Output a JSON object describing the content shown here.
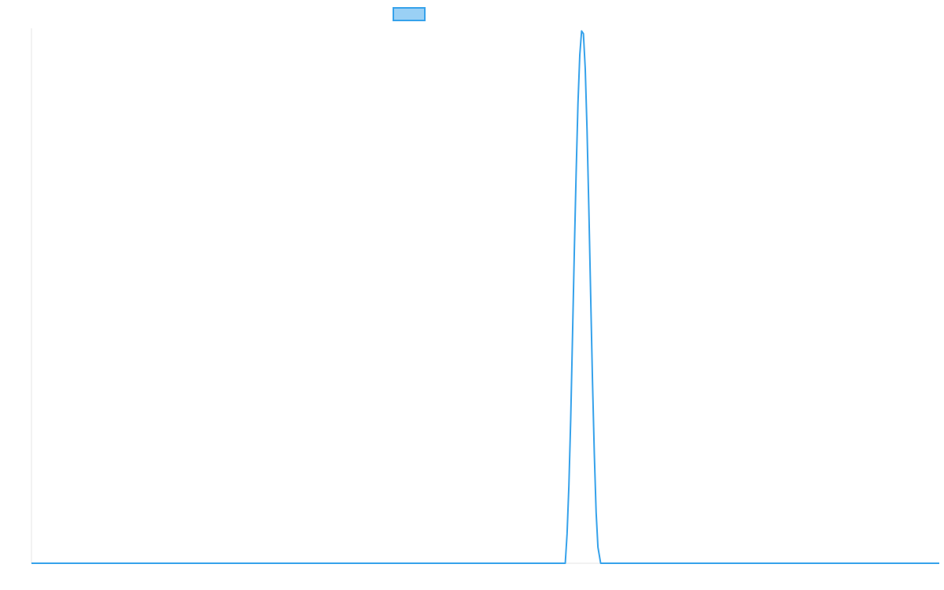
{
  "chart_data": {
    "type": "line",
    "title": "",
    "xlabel": "",
    "ylabel": "",
    "legend": {
      "position": "top-center",
      "entries": [
        {
          "label": "",
          "color": "#36a2eb",
          "fill": "#9ad0f5"
        }
      ]
    },
    "grid": false,
    "xlim": [
      0,
      100
    ],
    "ylim": [
      0,
      1
    ],
    "series": [
      {
        "color": "#36a2eb",
        "points": [
          [
            0,
            0
          ],
          [
            58.8,
            0
          ],
          [
            59.0,
            0.055
          ],
          [
            59.2,
            0.145
          ],
          [
            59.4,
            0.27
          ],
          [
            59.6,
            0.425
          ],
          [
            59.8,
            0.585
          ],
          [
            60.0,
            0.73
          ],
          [
            60.2,
            0.86
          ],
          [
            60.4,
            0.95
          ],
          [
            60.6,
            0.995
          ],
          [
            60.8,
            0.99
          ],
          [
            61.0,
            0.925
          ],
          [
            61.2,
            0.81
          ],
          [
            61.4,
            0.66
          ],
          [
            61.6,
            0.5
          ],
          [
            61.8,
            0.34
          ],
          [
            62.0,
            0.205
          ],
          [
            62.2,
            0.095
          ],
          [
            62.4,
            0.03
          ],
          [
            62.7,
            0
          ],
          [
            100,
            0
          ]
        ]
      }
    ]
  }
}
